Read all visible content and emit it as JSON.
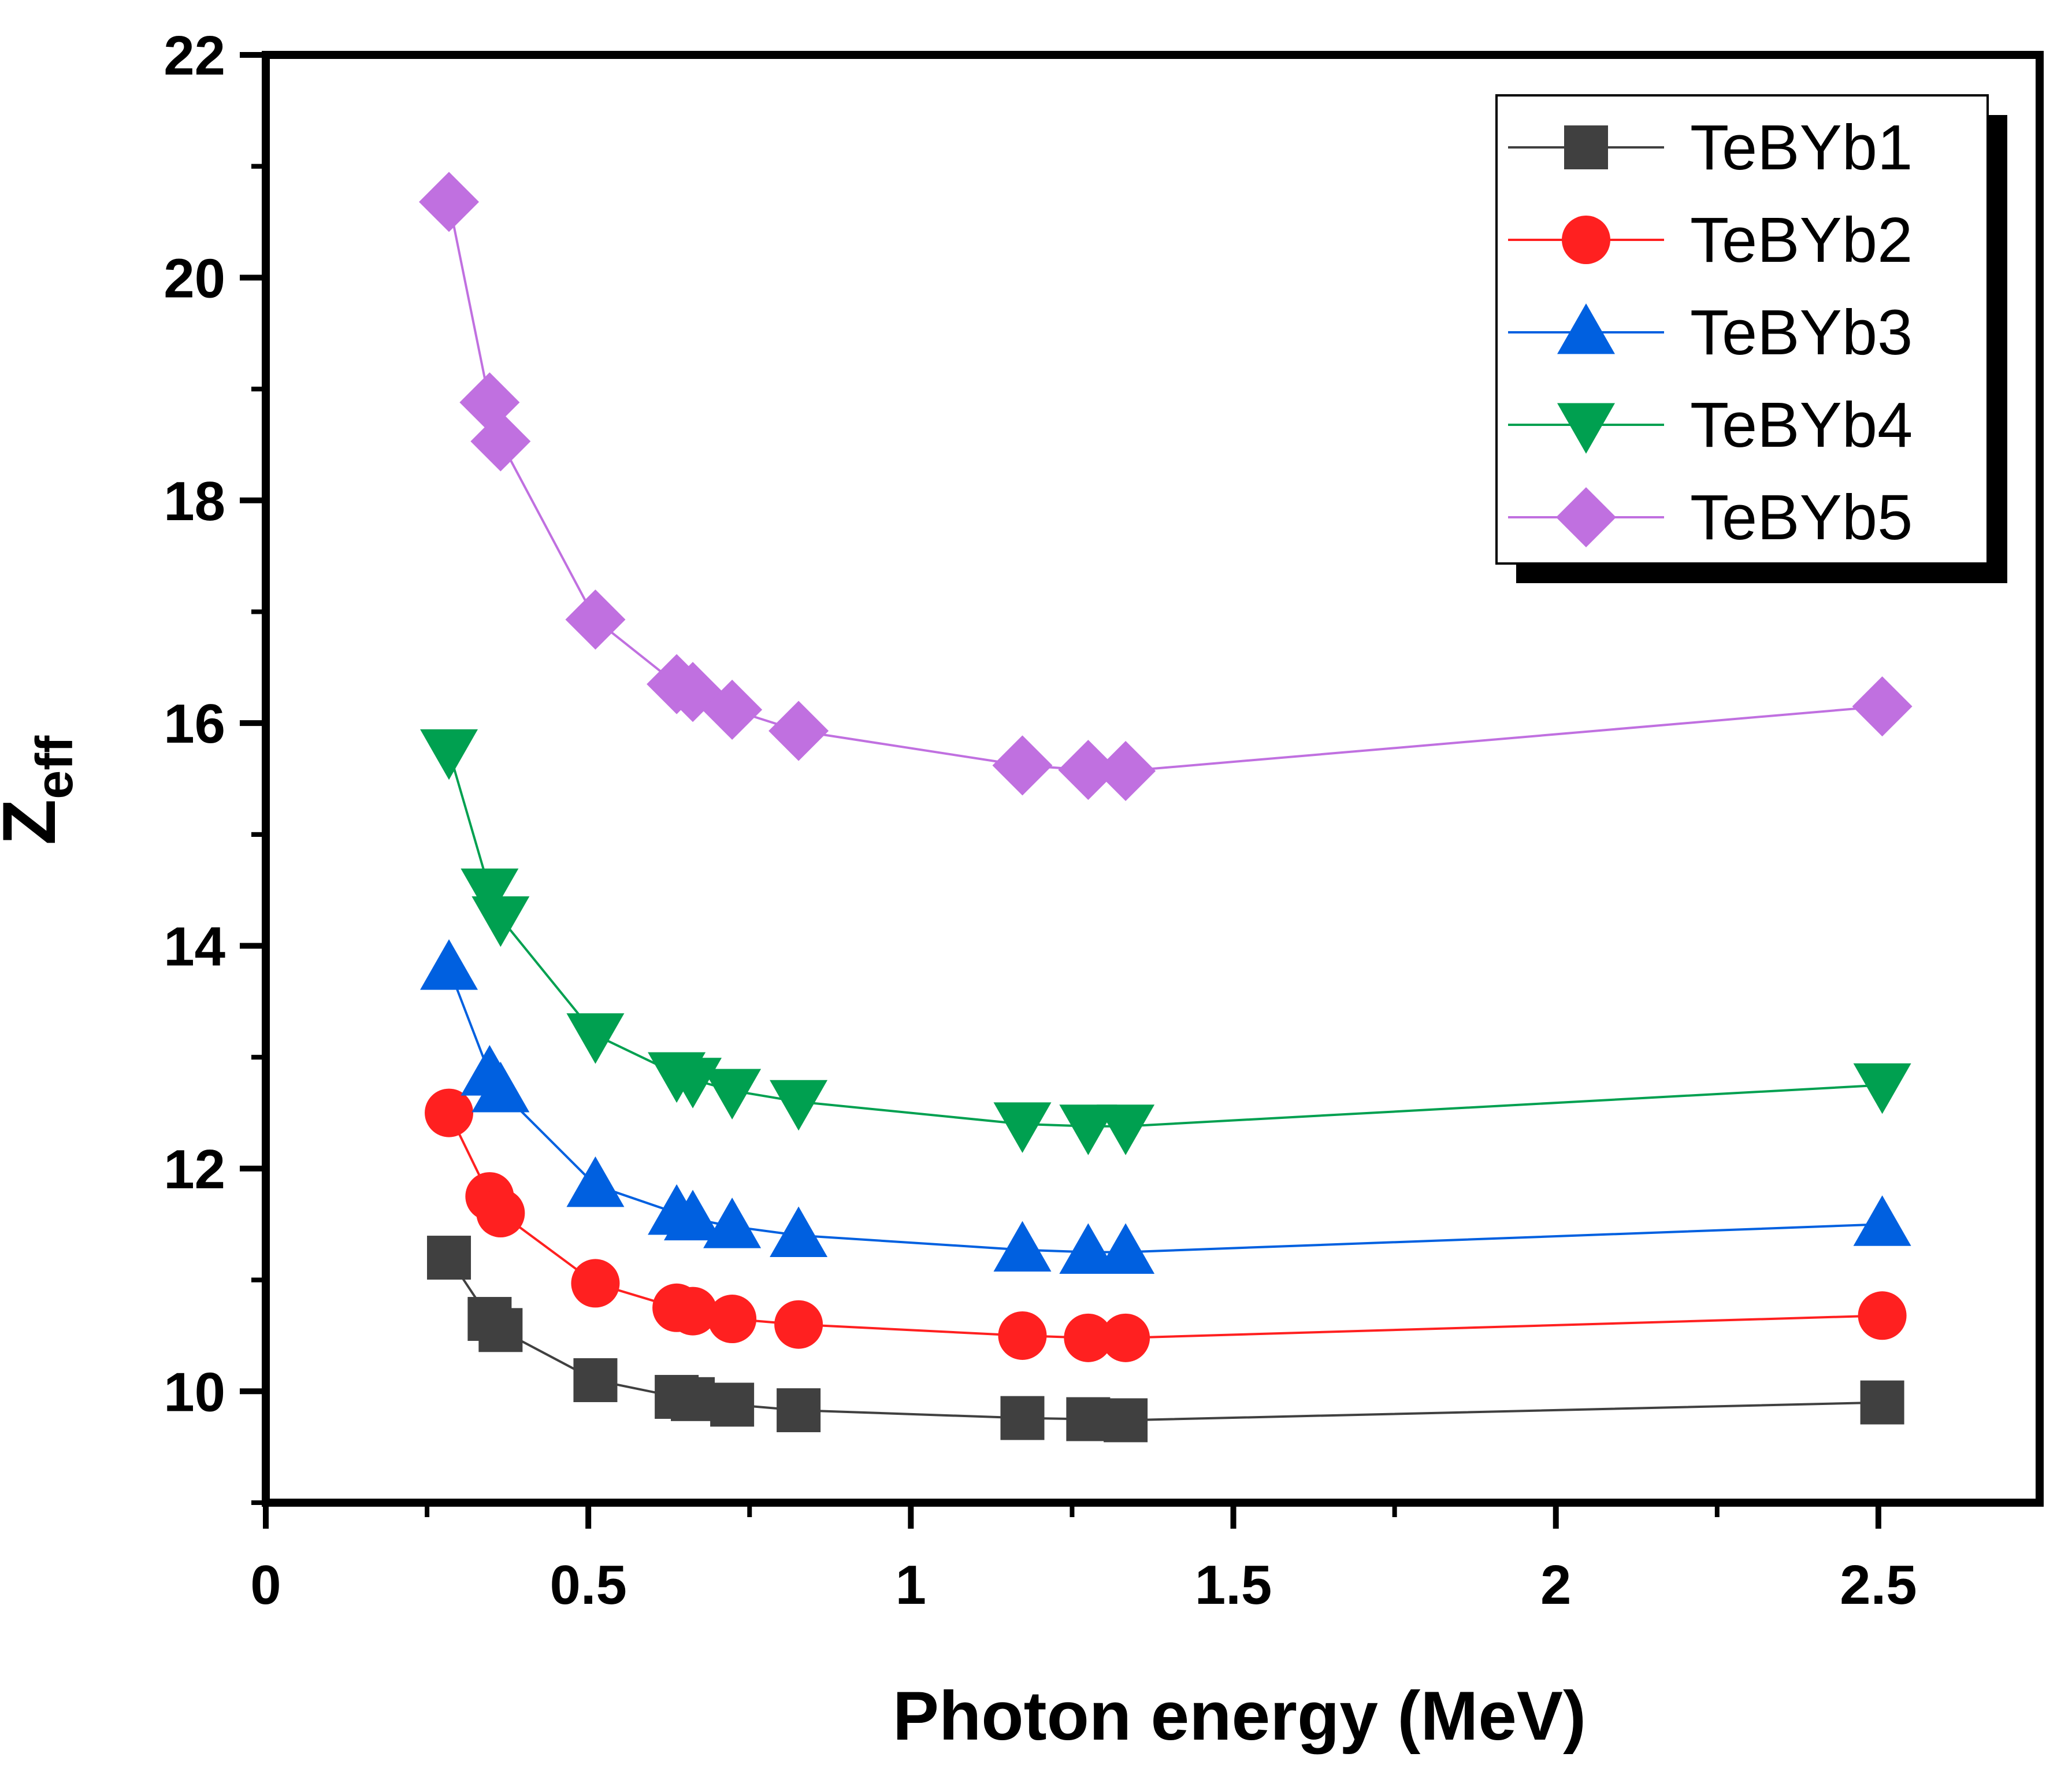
{
  "chart_data": {
    "type": "line",
    "title": "",
    "xlabel": "Photon energy (MeV)",
    "ylabel_main": "Z",
    "ylabel_sub": "eff",
    "xlim": [
      0,
      2.75
    ],
    "ylim": [
      9,
      22
    ],
    "xticks": [
      0,
      0.5,
      1,
      1.5,
      2,
      2.5
    ],
    "xtick_labels": [
      "0",
      "0.5",
      "1",
      "1.5",
      "2",
      "2.5"
    ],
    "yticks": [
      10,
      12,
      14,
      16,
      18,
      20,
      22
    ],
    "ytick_labels": [
      "10",
      "12",
      "14",
      "16",
      "18",
      "20",
      "22"
    ],
    "x": [
      0.284,
      0.347,
      0.364,
      0.511,
      0.637,
      0.662,
      0.723,
      0.826,
      1.173,
      1.275,
      1.333,
      2.506
    ],
    "legend_position": "top-right",
    "series": [
      {
        "name": "TeBYb1",
        "color": "#404040",
        "marker": "square",
        "values": [
          11.2,
          10.65,
          10.55,
          10.1,
          9.95,
          9.93,
          9.88,
          9.83,
          9.76,
          9.75,
          9.74,
          9.9
        ]
      },
      {
        "name": "TeBYb2",
        "color": "#ff2020",
        "marker": "circle",
        "values": [
          12.5,
          11.75,
          11.6,
          10.97,
          10.75,
          10.72,
          10.65,
          10.6,
          10.5,
          10.48,
          10.48,
          10.68
        ]
      },
      {
        "name": "TeBYb3",
        "color": "#0060e0",
        "marker": "triangle-up",
        "values": [
          13.8,
          12.85,
          12.7,
          11.85,
          11.6,
          11.55,
          11.48,
          11.4,
          11.27,
          11.25,
          11.25,
          11.5
        ]
      },
      {
        "name": "TeBYb4",
        "color": "#00a050",
        "marker": "triangle-down",
        "values": [
          15.75,
          14.5,
          14.25,
          13.2,
          12.85,
          12.8,
          12.7,
          12.6,
          12.4,
          12.38,
          12.38,
          12.75
        ]
      },
      {
        "name": "TeBYb5",
        "color": "#c070e0",
        "marker": "diamond",
        "values": [
          20.68,
          18.88,
          18.53,
          16.93,
          16.35,
          16.28,
          16.12,
          15.93,
          15.62,
          15.58,
          15.57,
          16.15
        ]
      }
    ]
  }
}
